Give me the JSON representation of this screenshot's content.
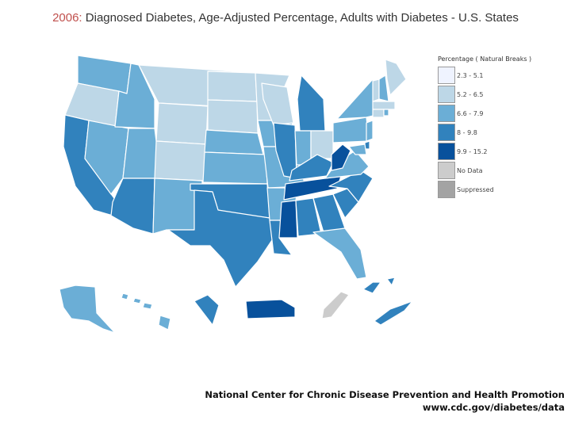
{
  "title": {
    "year": "2006:",
    "text": " Diagnosed Diabetes, Age-Adjusted Percentage, Adults with Diabetes - U.S. States"
  },
  "legend": {
    "title": "Percentage ( Natural Breaks )",
    "items": [
      {
        "label": "2.3 - 5.1",
        "color": "#eff3ff"
      },
      {
        "label": "5.2 - 6.5",
        "color": "#bdd7e7"
      },
      {
        "label": "6.6 - 7.9",
        "color": "#6baed6"
      },
      {
        "label": "8 - 9.8",
        "color": "#3182bd"
      },
      {
        "label": "9.9 - 15.2",
        "color": "#08519c"
      },
      {
        "label": "No Data",
        "color": "#cccccc"
      },
      {
        "label": "Suppressed",
        "color": "#a3a3a3"
      }
    ]
  },
  "states": [
    {
      "id": "WA",
      "cls": 2
    },
    {
      "id": "OR",
      "cls": 1
    },
    {
      "id": "CA",
      "cls": 3
    },
    {
      "id": "NV",
      "cls": 2
    },
    {
      "id": "ID",
      "cls": 2
    },
    {
      "id": "MT",
      "cls": 1
    },
    {
      "id": "WY",
      "cls": 1
    },
    {
      "id": "UT",
      "cls": 2
    },
    {
      "id": "AZ",
      "cls": 3
    },
    {
      "id": "CO",
      "cls": 1
    },
    {
      "id": "NM",
      "cls": 2
    },
    {
      "id": "ND",
      "cls": 1
    },
    {
      "id": "SD",
      "cls": 1
    },
    {
      "id": "NE",
      "cls": 2
    },
    {
      "id": "KS",
      "cls": 2
    },
    {
      "id": "OK",
      "cls": 3
    },
    {
      "id": "TX",
      "cls": 3
    },
    {
      "id": "MN",
      "cls": 1
    },
    {
      "id": "IA",
      "cls": 2
    },
    {
      "id": "MO",
      "cls": 2
    },
    {
      "id": "AR",
      "cls": 2
    },
    {
      "id": "LA",
      "cls": 3
    },
    {
      "id": "WI",
      "cls": 1
    },
    {
      "id": "IL",
      "cls": 3
    },
    {
      "id": "MI",
      "cls": 3
    },
    {
      "id": "IN",
      "cls": 2
    },
    {
      "id": "OH",
      "cls": 1
    },
    {
      "id": "KY",
      "cls": 3
    },
    {
      "id": "TN",
      "cls": 4
    },
    {
      "id": "MS",
      "cls": 4
    },
    {
      "id": "AL",
      "cls": 3
    },
    {
      "id": "GA",
      "cls": 3
    },
    {
      "id": "FL",
      "cls": 2
    },
    {
      "id": "SC",
      "cls": 3
    },
    {
      "id": "NC",
      "cls": 3
    },
    {
      "id": "VA",
      "cls": 2
    },
    {
      "id": "WV",
      "cls": 4
    },
    {
      "id": "PA",
      "cls": 2
    },
    {
      "id": "NY",
      "cls": 2
    },
    {
      "id": "VT",
      "cls": 1
    },
    {
      "id": "NH",
      "cls": 2
    },
    {
      "id": "ME",
      "cls": 1
    },
    {
      "id": "MA",
      "cls": 1
    },
    {
      "id": "CT",
      "cls": 1
    },
    {
      "id": "RI",
      "cls": 2
    },
    {
      "id": "NJ",
      "cls": 2
    },
    {
      "id": "DE",
      "cls": 3
    },
    {
      "id": "MD",
      "cls": 2
    },
    {
      "id": "AK",
      "cls": 2
    },
    {
      "id": "HI",
      "cls": 2
    },
    {
      "id": "DC",
      "cls": 3
    },
    {
      "id": "PR",
      "cls": 4
    },
    {
      "id": "GU",
      "cls": 5
    },
    {
      "id": "VI",
      "cls": 3
    }
  ],
  "footer": {
    "line1": "National Center for Chronic Disease Prevention and Health Promotion",
    "line2": "www.cdc.gov/diabetes/data"
  }
}
